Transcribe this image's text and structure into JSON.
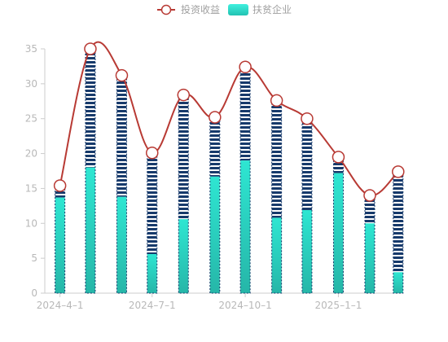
{
  "chart_data": {
    "type": "bar",
    "x": [
      "2024-04-01",
      "2024-05-01",
      "2024-06-01",
      "2024-07-01",
      "2024-08-01",
      "2024-09-01",
      "2024-10-01",
      "2024-11-01",
      "2024-12-01",
      "2025-01-01",
      "2025-02-01",
      "2025-03-01"
    ],
    "x_tick_labels": [
      "2024–4–1",
      "2024–7–1",
      "2024–10–1",
      "2025–1–1"
    ],
    "series": [
      {
        "name": "扶贫企业",
        "type": "stacked-bar",
        "base_values": [
          13.7,
          18.0,
          13.8,
          5.6,
          10.6,
          16.7,
          19.0,
          10.8,
          11.9,
          17.2,
          10.0,
          3.0
        ],
        "values": [
          15.4,
          35.0,
          31.2,
          20.1,
          28.4,
          25.2,
          32.4,
          27.6,
          25.0,
          19.5,
          14.0,
          17.4
        ]
      },
      {
        "name": "投资收益",
        "type": "line",
        "values": [
          15.4,
          35.0,
          31.2,
          20.1,
          28.4,
          25.2,
          32.4,
          27.6,
          25.0,
          19.5,
          14.0,
          17.4
        ]
      }
    ],
    "ylim": [
      0,
      35
    ],
    "y_ticks": [
      0,
      5,
      10,
      15,
      20,
      25,
      30,
      35
    ],
    "grid": false,
    "legend_position": "top-center"
  },
  "colors": {
    "line": "#b83a34",
    "bar_base_top": "#2ee6d2",
    "bar_base_bottom": "#26b6a8",
    "bar_stripe": "#173a6b",
    "axis": "#cccccc",
    "tick_text": "#b8b8b8",
    "legend_text": "#a0a0a0"
  }
}
